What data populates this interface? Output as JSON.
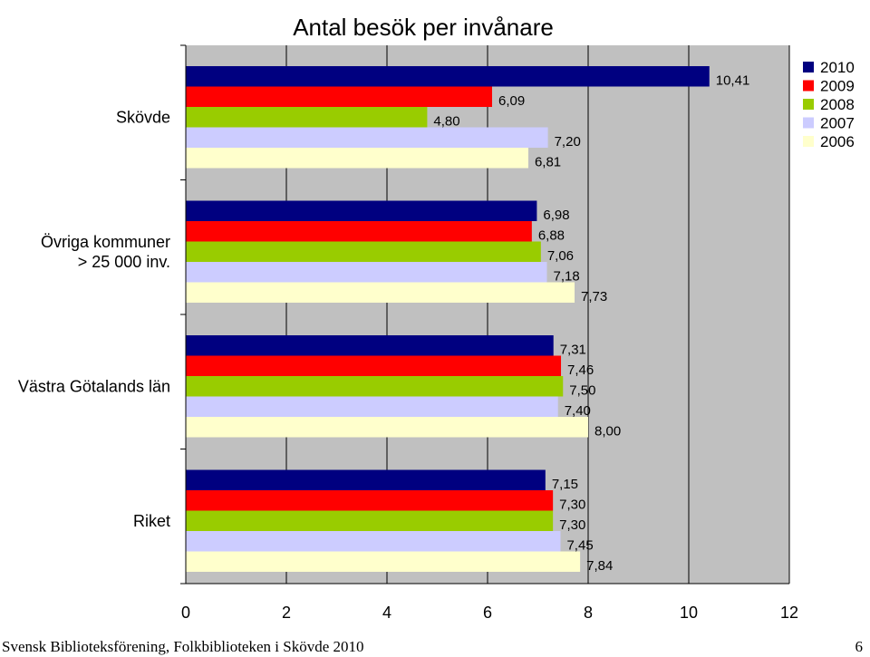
{
  "chart_data": {
    "type": "bar",
    "orientation": "horizontal",
    "title": "Antal besök per invånare",
    "categories": [
      "Skövde",
      "Övriga kommuner > 25 000 inv.",
      "Västra Götalands län",
      "Riket"
    ],
    "category_label_lines": [
      [
        "Skövde"
      ],
      [
        "Övriga kommuner",
        "> 25 000 inv."
      ],
      [
        "Västra Götalands län"
      ],
      [
        "Riket"
      ]
    ],
    "series": [
      {
        "name": "2010",
        "color": "#000080",
        "values": [
          10.41,
          6.98,
          7.31,
          7.15
        ],
        "labels": [
          "10,41",
          "6,98",
          "7,31",
          "7,15"
        ]
      },
      {
        "name": "2009",
        "color": "#ff0000",
        "values": [
          6.09,
          6.88,
          7.46,
          7.3
        ],
        "labels": [
          "6,09",
          "6,88",
          "7,46",
          "7,30"
        ]
      },
      {
        "name": "2008",
        "color": "#99cc00",
        "values": [
          4.8,
          7.06,
          7.5,
          7.3
        ],
        "labels": [
          "4,80",
          "7,06",
          "7,50",
          "7,30"
        ]
      },
      {
        "name": "2007",
        "color": "#ccccff",
        "values": [
          7.2,
          7.18,
          7.4,
          7.45
        ],
        "labels": [
          "7,20",
          "7,18",
          "7,40",
          "7,45"
        ]
      },
      {
        "name": "2006",
        "color": "#ffffcc",
        "values": [
          6.81,
          7.73,
          8.0,
          7.84
        ],
        "labels": [
          "6,81",
          "7,73",
          "8,00",
          "7,84"
        ]
      }
    ],
    "xlim": [
      0,
      12
    ],
    "xticks": [
      "0",
      "2",
      "4",
      "6",
      "8",
      "10",
      "12"
    ],
    "grid": "vertical",
    "legend_position": "top-right"
  },
  "footer": {
    "source": "Svensk Biblioteksförening, Folkbiblioteken i Skövde 2010",
    "page_number": "6"
  }
}
